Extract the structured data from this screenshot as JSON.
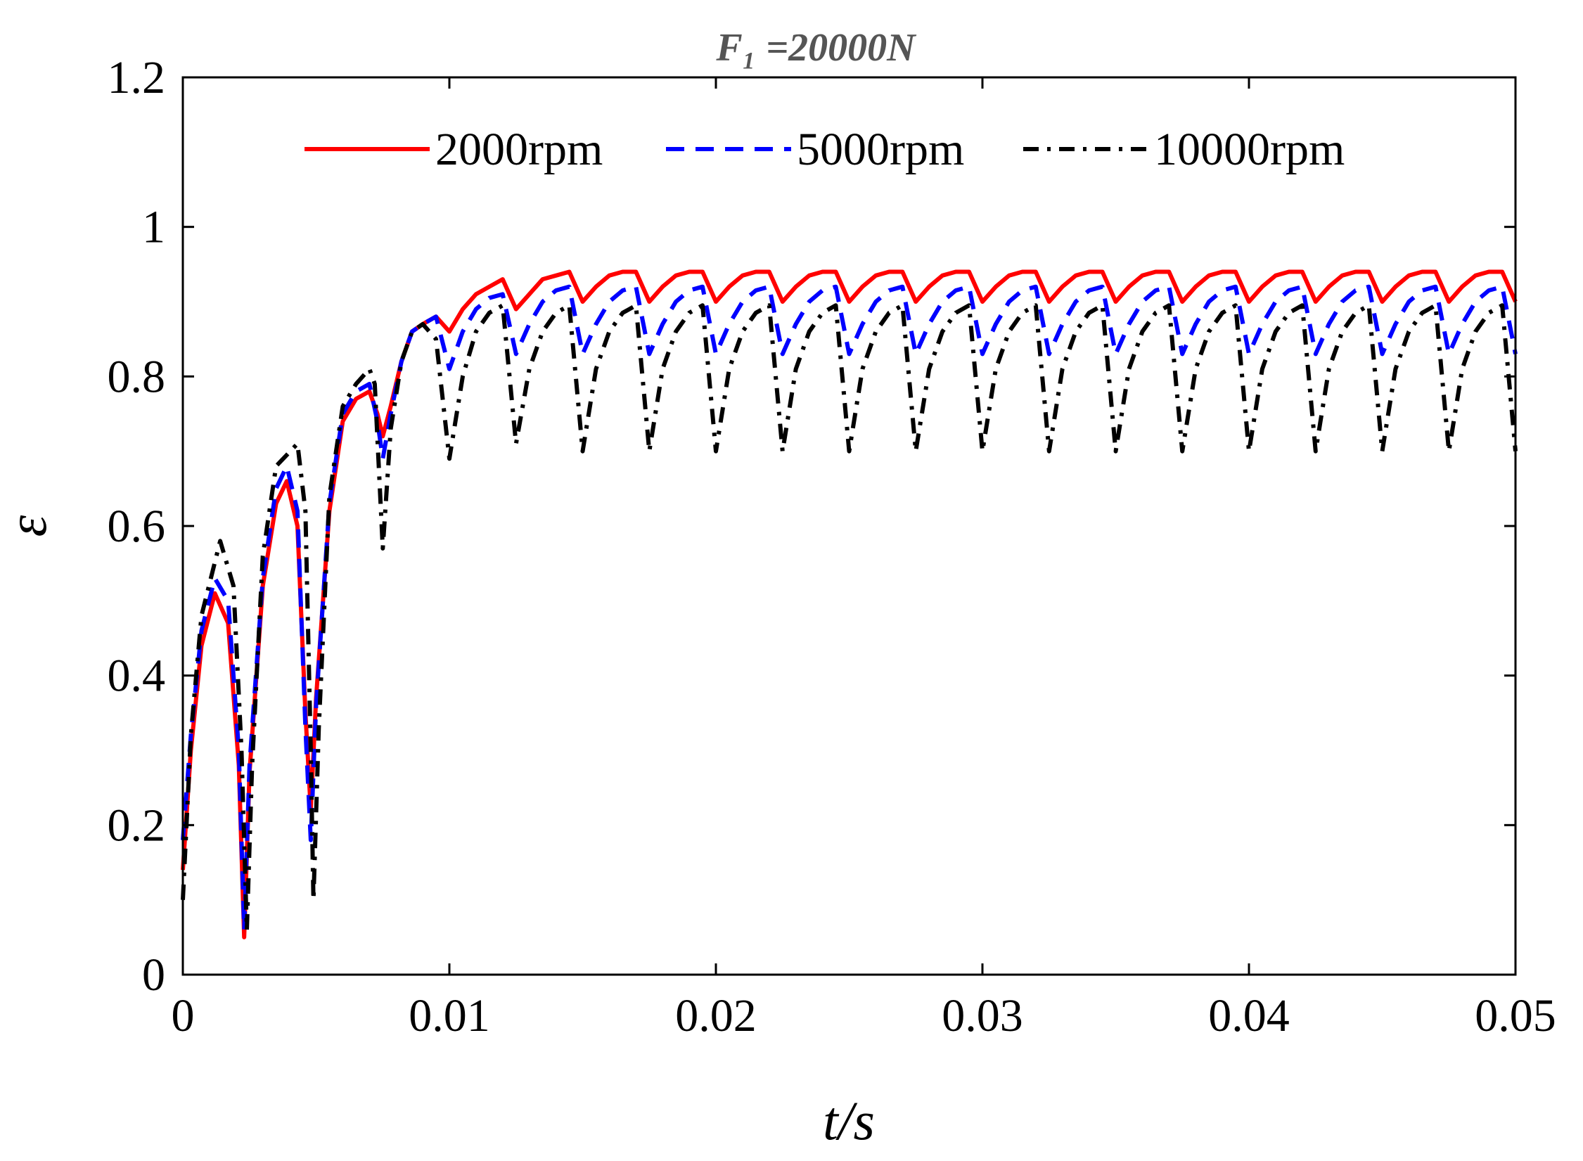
{
  "chart_data": {
    "type": "line",
    "title": "F₁ =20000N",
    "xlabel": "t/s",
    "ylabel": "ε",
    "xlim": [
      0,
      0.05
    ],
    "ylim": [
      0,
      1.2
    ],
    "xticks": [
      0,
      0.01,
      0.02,
      0.03,
      0.04,
      0.05
    ],
    "xtick_labels": [
      "0",
      "0.01",
      "0.02",
      "0.03",
      "0.04",
      "0.05"
    ],
    "yticks": [
      0,
      0.2,
      0.4,
      0.6,
      0.8,
      1.0,
      1.2
    ],
    "ytick_labels": [
      "0",
      "0.2",
      "0.4",
      "0.6",
      "0.8",
      "1",
      "1.2"
    ],
    "grid": false,
    "legend_position": "top",
    "series": [
      {
        "name": "2000rpm",
        "color": "#ff0000",
        "style": "solid",
        "x": [
          0,
          0.0003,
          0.0007,
          0.0012,
          0.0017,
          0.0021,
          0.0023,
          0.0025,
          0.003,
          0.0035,
          0.0039,
          0.0043,
          0.0046,
          0.0048,
          0.005,
          0.0055,
          0.006,
          0.0065,
          0.007,
          0.0073,
          0.0075,
          0.0078,
          0.0082,
          0.0086,
          0.009,
          0.0095,
          0.01,
          0.0105,
          0.011,
          0.0115,
          0.012,
          0.0125,
          0.013,
          0.0135,
          0.014,
          0.0145,
          0.015,
          0.0155,
          0.016,
          0.0165,
          0.017,
          0.0175,
          0.018,
          0.0185,
          0.019,
          0.0195,
          0.02,
          0.0205,
          0.021,
          0.0215,
          0.022,
          0.0225,
          0.023,
          0.0235,
          0.024,
          0.0245,
          0.025,
          0.0255,
          0.026,
          0.0265,
          0.027,
          0.0275,
          0.028,
          0.0285,
          0.029,
          0.0295,
          0.03,
          0.0305,
          0.031,
          0.0315,
          0.032,
          0.0325,
          0.033,
          0.0335,
          0.034,
          0.0345,
          0.035,
          0.0355,
          0.036,
          0.0365,
          0.037,
          0.0375,
          0.038,
          0.0385,
          0.039,
          0.0395,
          0.04,
          0.0405,
          0.041,
          0.0415,
          0.042,
          0.0425,
          0.043,
          0.0435,
          0.044,
          0.0445,
          0.045,
          0.0455,
          0.046,
          0.0465,
          0.047,
          0.0475,
          0.048,
          0.0485,
          0.049,
          0.0495,
          0.05
        ],
        "y": [
          0.14,
          0.3,
          0.44,
          0.51,
          0.47,
          0.28,
          0.05,
          0.27,
          0.52,
          0.63,
          0.66,
          0.6,
          0.35,
          0.22,
          0.37,
          0.62,
          0.74,
          0.77,
          0.78,
          0.75,
          0.72,
          0.76,
          0.82,
          0.86,
          0.87,
          0.88,
          0.86,
          0.89,
          0.91,
          0.92,
          0.93,
          0.89,
          0.91,
          0.93,
          0.935,
          0.94,
          0.9,
          0.92,
          0.935,
          0.94,
          0.94,
          0.9,
          0.92,
          0.935,
          0.94,
          0.94,
          0.9,
          0.92,
          0.935,
          0.94,
          0.94,
          0.9,
          0.92,
          0.935,
          0.94,
          0.94,
          0.9,
          0.92,
          0.935,
          0.94,
          0.94,
          0.9,
          0.92,
          0.935,
          0.94,
          0.94,
          0.9,
          0.92,
          0.935,
          0.94,
          0.94,
          0.9,
          0.92,
          0.935,
          0.94,
          0.94,
          0.9,
          0.92,
          0.935,
          0.94,
          0.94,
          0.9,
          0.92,
          0.935,
          0.94,
          0.94,
          0.9,
          0.92,
          0.935,
          0.94,
          0.94,
          0.9,
          0.92,
          0.935,
          0.94,
          0.94,
          0.9,
          0.92,
          0.935,
          0.94,
          0.94,
          0.9,
          0.92,
          0.935,
          0.94,
          0.94,
          0.9
        ]
      },
      {
        "name": "5000rpm",
        "color": "#0000ff",
        "style": "dashed",
        "x": [
          0,
          0.0003,
          0.0007,
          0.0012,
          0.0017,
          0.0021,
          0.0023,
          0.0025,
          0.003,
          0.0035,
          0.0039,
          0.0043,
          0.0046,
          0.0048,
          0.005,
          0.0055,
          0.006,
          0.0065,
          0.007,
          0.0073,
          0.0075,
          0.0078,
          0.0082,
          0.0086,
          0.009,
          0.0095,
          0.01,
          0.0105,
          0.011,
          0.0115,
          0.012,
          0.0125,
          0.013,
          0.0135,
          0.014,
          0.0145,
          0.015,
          0.0155,
          0.016,
          0.0165,
          0.017,
          0.0175,
          0.018,
          0.0185,
          0.019,
          0.0195,
          0.02,
          0.0205,
          0.021,
          0.0215,
          0.022,
          0.0225,
          0.023,
          0.0235,
          0.024,
          0.0245,
          0.025,
          0.0255,
          0.026,
          0.0265,
          0.027,
          0.0275,
          0.028,
          0.0285,
          0.029,
          0.0295,
          0.03,
          0.0305,
          0.031,
          0.0315,
          0.032,
          0.0325,
          0.033,
          0.0335,
          0.034,
          0.0345,
          0.035,
          0.0355,
          0.036,
          0.0365,
          0.037,
          0.0375,
          0.038,
          0.0385,
          0.039,
          0.0395,
          0.04,
          0.0405,
          0.041,
          0.0415,
          0.042,
          0.0425,
          0.043,
          0.0435,
          0.044,
          0.0445,
          0.045,
          0.0455,
          0.046,
          0.0465,
          0.047,
          0.0475,
          0.048,
          0.0485,
          0.049,
          0.0495,
          0.05
        ],
        "y": [
          0.18,
          0.32,
          0.46,
          0.53,
          0.5,
          0.3,
          0.06,
          0.28,
          0.53,
          0.65,
          0.68,
          0.62,
          0.33,
          0.18,
          0.36,
          0.63,
          0.75,
          0.78,
          0.79,
          0.74,
          0.69,
          0.75,
          0.82,
          0.86,
          0.87,
          0.88,
          0.81,
          0.86,
          0.89,
          0.905,
          0.91,
          0.83,
          0.87,
          0.9,
          0.915,
          0.92,
          0.83,
          0.87,
          0.9,
          0.915,
          0.92,
          0.83,
          0.87,
          0.9,
          0.915,
          0.92,
          0.83,
          0.87,
          0.9,
          0.915,
          0.92,
          0.83,
          0.87,
          0.9,
          0.915,
          0.92,
          0.83,
          0.87,
          0.9,
          0.915,
          0.92,
          0.83,
          0.87,
          0.9,
          0.915,
          0.92,
          0.83,
          0.87,
          0.9,
          0.915,
          0.92,
          0.83,
          0.87,
          0.9,
          0.915,
          0.92,
          0.83,
          0.87,
          0.9,
          0.915,
          0.92,
          0.83,
          0.87,
          0.9,
          0.915,
          0.92,
          0.83,
          0.87,
          0.9,
          0.915,
          0.92,
          0.83,
          0.87,
          0.9,
          0.915,
          0.92,
          0.83,
          0.87,
          0.9,
          0.915,
          0.92,
          0.83,
          0.87,
          0.9,
          0.915,
          0.92,
          0.83
        ]
      },
      {
        "name": "10000rpm",
        "color": "#000000",
        "style": "dashdot",
        "x": [
          0,
          0.0003,
          0.0007,
          0.0014,
          0.0019,
          0.0022,
          0.0024,
          0.0026,
          0.003,
          0.0035,
          0.0043,
          0.0046,
          0.0048,
          0.0049,
          0.0051,
          0.0055,
          0.006,
          0.0065,
          0.007,
          0.0072,
          0.0075,
          0.0078,
          0.0082,
          0.0086,
          0.009,
          0.0095,
          0.01,
          0.0105,
          0.011,
          0.0115,
          0.012,
          0.0125,
          0.013,
          0.0135,
          0.014,
          0.0145,
          0.015,
          0.0155,
          0.016,
          0.0165,
          0.017,
          0.0175,
          0.018,
          0.0185,
          0.019,
          0.0195,
          0.02,
          0.0205,
          0.021,
          0.0215,
          0.022,
          0.0225,
          0.023,
          0.0235,
          0.024,
          0.0245,
          0.025,
          0.0255,
          0.026,
          0.0265,
          0.027,
          0.0275,
          0.028,
          0.0285,
          0.029,
          0.0295,
          0.03,
          0.0305,
          0.031,
          0.0315,
          0.032,
          0.0325,
          0.033,
          0.0335,
          0.034,
          0.0345,
          0.035,
          0.0355,
          0.036,
          0.0365,
          0.037,
          0.0375,
          0.038,
          0.0385,
          0.039,
          0.0395,
          0.04,
          0.0405,
          0.041,
          0.0415,
          0.042,
          0.0425,
          0.043,
          0.0435,
          0.044,
          0.0445,
          0.045,
          0.0455,
          0.046,
          0.0465,
          0.047,
          0.0475,
          0.048,
          0.0485,
          0.049,
          0.0495,
          0.05
        ],
        "y": [
          0.1,
          0.32,
          0.48,
          0.58,
          0.52,
          0.3,
          0.06,
          0.28,
          0.56,
          0.68,
          0.71,
          0.62,
          0.3,
          0.1,
          0.33,
          0.64,
          0.76,
          0.79,
          0.81,
          0.79,
          0.57,
          0.73,
          0.82,
          0.86,
          0.87,
          0.85,
          0.69,
          0.8,
          0.86,
          0.885,
          0.895,
          0.71,
          0.81,
          0.86,
          0.885,
          0.895,
          0.7,
          0.81,
          0.86,
          0.885,
          0.895,
          0.7,
          0.81,
          0.86,
          0.885,
          0.895,
          0.7,
          0.81,
          0.86,
          0.885,
          0.895,
          0.7,
          0.81,
          0.86,
          0.885,
          0.895,
          0.7,
          0.81,
          0.86,
          0.885,
          0.895,
          0.7,
          0.81,
          0.86,
          0.885,
          0.895,
          0.7,
          0.81,
          0.86,
          0.885,
          0.895,
          0.7,
          0.81,
          0.86,
          0.885,
          0.895,
          0.7,
          0.81,
          0.86,
          0.885,
          0.895,
          0.7,
          0.81,
          0.86,
          0.885,
          0.895,
          0.7,
          0.81,
          0.86,
          0.885,
          0.895,
          0.7,
          0.81,
          0.86,
          0.885,
          0.895,
          0.7,
          0.81,
          0.86,
          0.885,
          0.895,
          0.7,
          0.81,
          0.86,
          0.885,
          0.895,
          0.7
        ]
      }
    ]
  }
}
